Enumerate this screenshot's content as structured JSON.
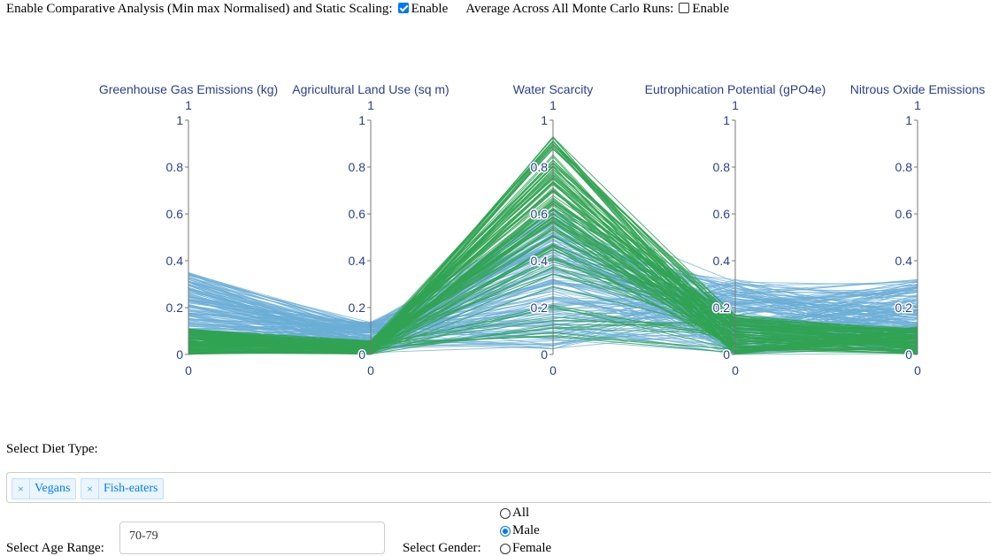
{
  "controls": {
    "comparative_label": "Enable Comparative Analysis (Min max Normalised) and Static Scaling:",
    "comparative_checkbox_label": "Enable",
    "comparative_checked": true,
    "average_label": "Average Across All Monte Carlo Runs:",
    "average_checkbox_label": "Enable",
    "average_checked": false
  },
  "chart_data": {
    "type": "parallel-coordinates",
    "axes": [
      {
        "label": "Greenhouse Gas Emissions (kg)",
        "range": [
          0,
          1
        ],
        "top_label": "1",
        "bottom_label": "0"
      },
      {
        "label": "Agricultural Land Use (sq m)",
        "range": [
          0,
          1
        ],
        "top_label": "1",
        "bottom_label": "0"
      },
      {
        "label": "Water Scarcity",
        "range": [
          0,
          1
        ],
        "top_label": "1",
        "bottom_label": "0"
      },
      {
        "label": "Eutrophication Potential (gPO4e)",
        "range": [
          0,
          1
        ],
        "top_label": "1",
        "bottom_label": "0"
      },
      {
        "label": "Nitrous Oxide Emissions",
        "range": [
          0,
          1
        ],
        "top_label": "1",
        "bottom_label": "0"
      }
    ],
    "ticks": [
      "0",
      "0.2",
      "0.4",
      "0.6",
      "0.8",
      "1"
    ],
    "tick_values": [
      0,
      0.2,
      0.4,
      0.6,
      0.8,
      1
    ],
    "series": [
      {
        "color": "#6baed6",
        "band_low": [
          0.0,
          0.0,
          0.02,
          0.0,
          0.0
        ],
        "band_high": [
          0.35,
          0.14,
          0.63,
          0.32,
          0.32
        ]
      },
      {
        "color": "#31a354",
        "band_low": [
          0.0,
          0.0,
          0.0,
          0.0,
          0.0
        ],
        "band_high": [
          0.11,
          0.06,
          0.93,
          0.17,
          0.12
        ]
      }
    ]
  },
  "filters": {
    "diet_label": "Select Diet Type:",
    "diet_tags": [
      "Vegans",
      "Fish-eaters"
    ],
    "remove_glyph": "×",
    "age_label": "Select Age Range:",
    "age_value": "70-79",
    "gender_label": "Select Gender:",
    "gender_options": [
      "All",
      "Male",
      "Female"
    ],
    "gender_selected": "Male"
  }
}
